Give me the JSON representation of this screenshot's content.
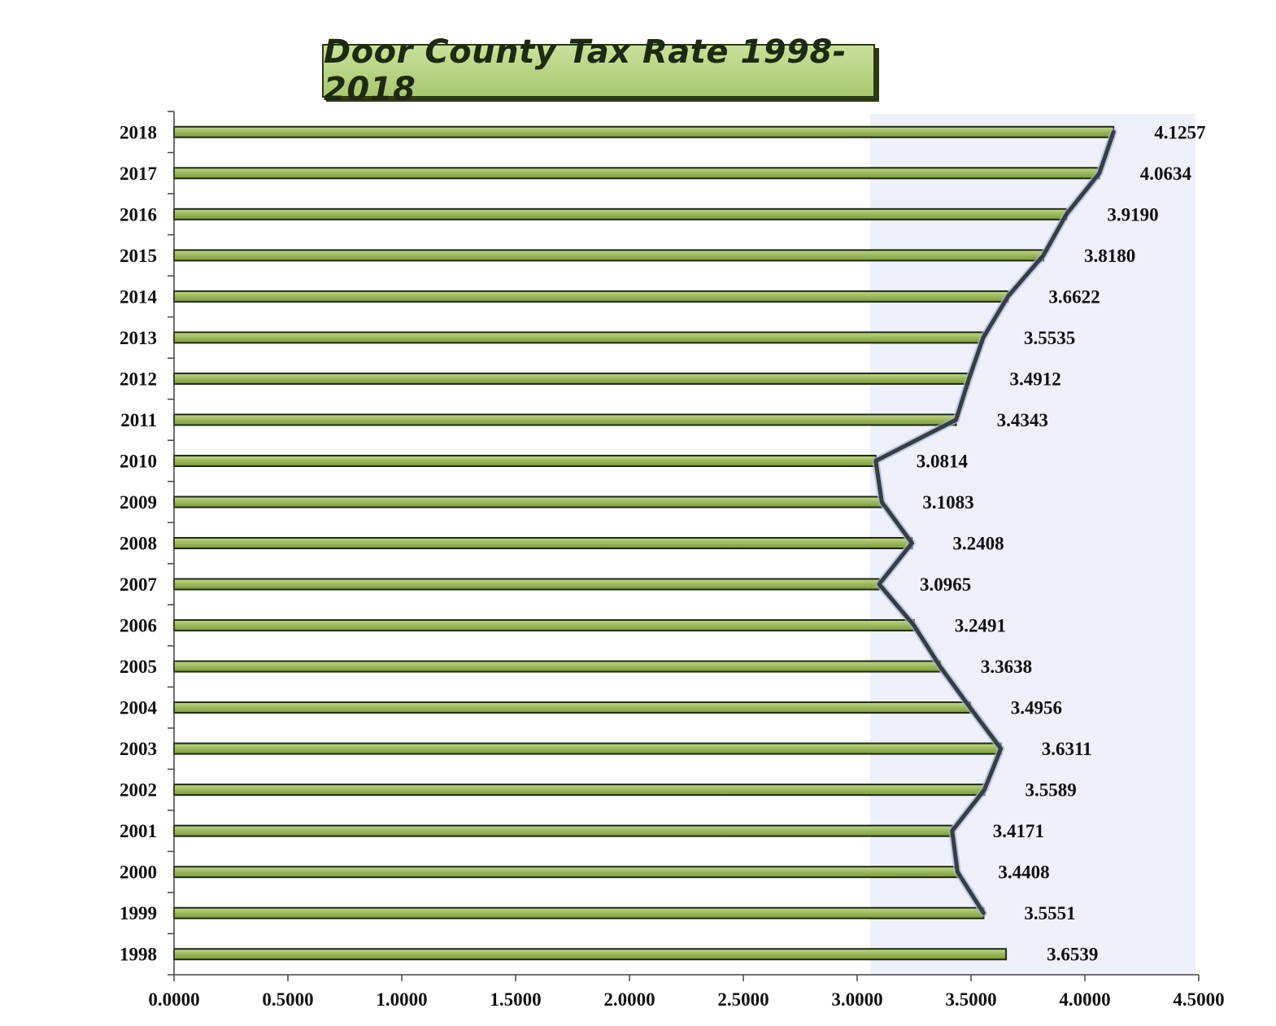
{
  "chart_data": {
    "type": "bar",
    "orientation": "horizontal",
    "title": "Door County Tax Rate 1998-2018",
    "categories": [
      "1998",
      "1999",
      "2000",
      "2001",
      "2002",
      "2003",
      "2004",
      "2005",
      "2006",
      "2007",
      "2008",
      "2009",
      "2010",
      "2011",
      "2012",
      "2013",
      "2014",
      "2015",
      "2016",
      "2017",
      "2018"
    ],
    "values": [
      3.6539,
      3.5551,
      3.4408,
      3.4171,
      3.5589,
      3.6311,
      3.4956,
      3.3638,
      3.2491,
      3.0965,
      3.2408,
      3.1083,
      3.0814,
      3.4343,
      3.4912,
      3.5535,
      3.6622,
      3.818,
      3.919,
      4.0634,
      4.1257
    ],
    "data_labels": [
      "3.6539",
      "3.5551",
      "3.4408",
      "3.4171",
      "3.5589",
      "3.6311",
      "3.4956",
      "3.3638",
      "3.2491",
      "3.0965",
      "3.2408",
      "3.1083",
      "3.0814",
      "3.4343",
      "3.4912",
      "3.5535",
      "3.6622",
      "3.8180",
      "3.9190",
      "4.0634",
      "4.1257"
    ],
    "trend_line": {
      "from": "1999",
      "to": "2018"
    },
    "xlim": [
      0,
      4.5
    ],
    "x_ticks": [
      "0.0000",
      "0.5000",
      "1.0000",
      "1.5000",
      "2.0000",
      "2.5000",
      "3.0000",
      "3.5000",
      "4.0000",
      "4.5000"
    ],
    "xlabel": "",
    "ylabel": "",
    "grid": false,
    "legend": "none",
    "colors": {
      "bar": "#9bb85c",
      "bar_edge": "#1e2a10",
      "line": "#3a3d3f",
      "line_glow": "#9fb3dc"
    }
  }
}
